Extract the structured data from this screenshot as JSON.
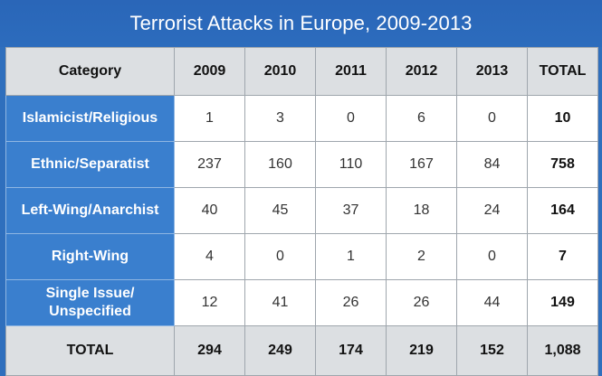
{
  "title": "Terrorist Attacks in Europe, 2009-2013",
  "chart_data": {
    "type": "table",
    "title": "Terrorist Attacks in Europe, 2009-2013",
    "columns": [
      "Category",
      "2009",
      "2010",
      "2011",
      "2012",
      "2013",
      "TOTAL"
    ],
    "rows": [
      {
        "category": "Islamicist/Religious",
        "values": [
          "1",
          "3",
          "0",
          "6",
          "0"
        ],
        "total": "10"
      },
      {
        "category": "Ethnic/Separatist",
        "values": [
          "237",
          "160",
          "110",
          "167",
          "84"
        ],
        "total": "758"
      },
      {
        "category": "Left-Wing/Anarchist",
        "values": [
          "40",
          "45",
          "37",
          "18",
          "24"
        ],
        "total": "164"
      },
      {
        "category": "Right-Wing",
        "values": [
          "4",
          "0",
          "1",
          "2",
          "0"
        ],
        "total": "7"
      },
      {
        "category": "Single Issue/ Unspecified",
        "values": [
          "12",
          "41",
          "26",
          "26",
          "44"
        ],
        "total": "149"
      }
    ],
    "total_row": {
      "label": "TOTAL",
      "values": [
        "294",
        "249",
        "174",
        "219",
        "152"
      ],
      "total": "1,088"
    }
  },
  "colors": {
    "header_blue": "#2c6cbd",
    "category_blue": "#3a7fce",
    "gray": "#dcdfe2"
  }
}
